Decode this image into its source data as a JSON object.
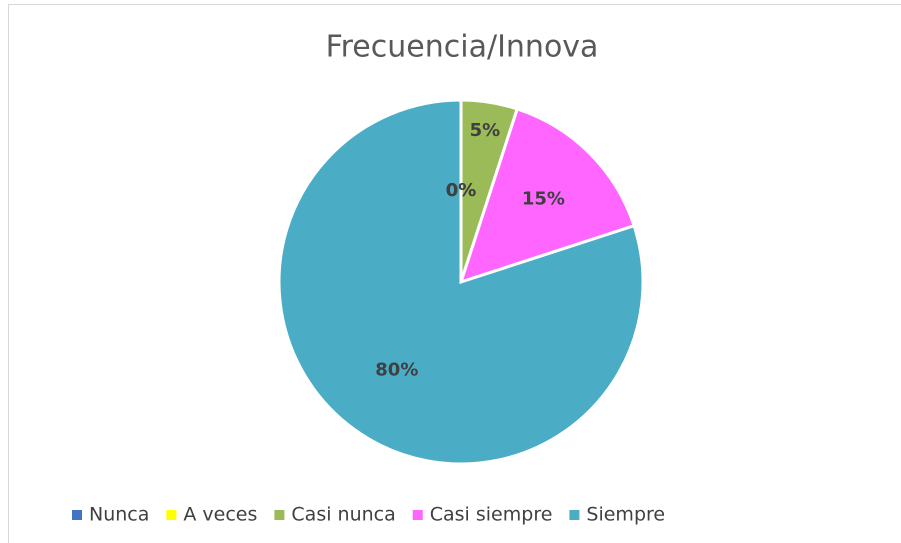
{
  "chart_data": {
    "type": "pie",
    "title": "Frecuencia/Innova",
    "categories": [
      "Nunca",
      "A veces",
      "Casi nunca",
      "Casi siempre",
      "Siempre"
    ],
    "values": [
      0,
      0,
      5,
      15,
      80
    ],
    "value_labels": [
      "0%",
      "0%",
      "5%",
      "15%",
      "80%"
    ],
    "colors": [
      "#4472c4",
      "#ffff00",
      "#9bbb59",
      "#ff66ff",
      "#4bacc6"
    ],
    "legend": "bottom"
  }
}
